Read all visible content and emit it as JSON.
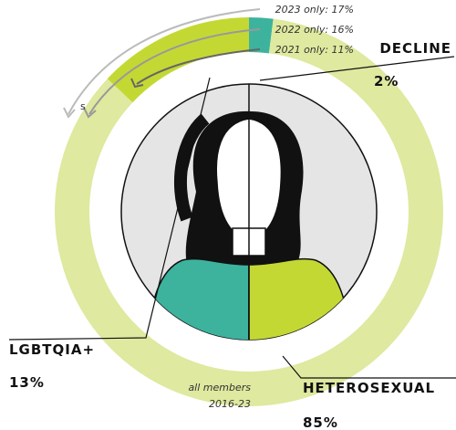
{
  "chart_data": {
    "type": "donut",
    "categories": [
      "DECLINE",
      "HETEROSEXUAL",
      "LGBTQIA+"
    ],
    "values": [
      2,
      85,
      13
    ],
    "value_labels": [
      "2%",
      "85%",
      "13%"
    ],
    "colors": [
      "#3db39e",
      "#dfe99f",
      "#c4d834"
    ],
    "annotations": [
      "2023 only: 17%",
      "2022 only: 16%",
      "2021 only: 11%"
    ],
    "note": [
      "all members",
      "2016-23"
    ],
    "fragment": "s"
  }
}
